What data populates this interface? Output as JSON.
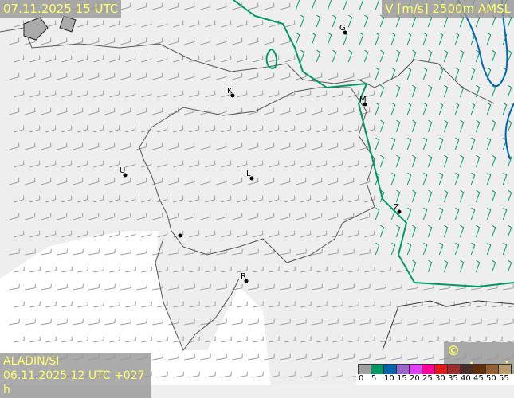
{
  "header": {
    "valid_time": "07.11.2025 15 UTC",
    "variable": "V [m/s] 2500m AMSL"
  },
  "footer": {
    "model": "ALADIN/SI",
    "run": "06.11.2025 12 UTC +027 h",
    "copyright": "© meteo.si"
  },
  "legend": {
    "ticks": [
      "0",
      "5",
      "10",
      "15",
      "20",
      "25",
      "30",
      "35",
      "40",
      "45",
      "50",
      "55"
    ],
    "colors": [
      "#a0a0a0",
      "#009966",
      "#0066b3",
      "#9966cc",
      "#e040fb",
      "#ff0099",
      "#e21b1b",
      "#9e2b2b",
      "#4a2c2c",
      "#5e2f0b",
      "#93602f",
      "#b89b6a"
    ]
  },
  "cities": [
    {
      "label": "G"
    },
    {
      "label": "K"
    },
    {
      "label": "M"
    },
    {
      "label": "U"
    },
    {
      "label": "L"
    },
    {
      "label": "Z"
    },
    {
      "label": "R"
    }
  ],
  "colors": {
    "barb_calm": "#a0a0a0",
    "barb_5": "#009966",
    "isotach_5": "#009966",
    "isotach_10": "#0066b3",
    "border": "#555555"
  }
}
